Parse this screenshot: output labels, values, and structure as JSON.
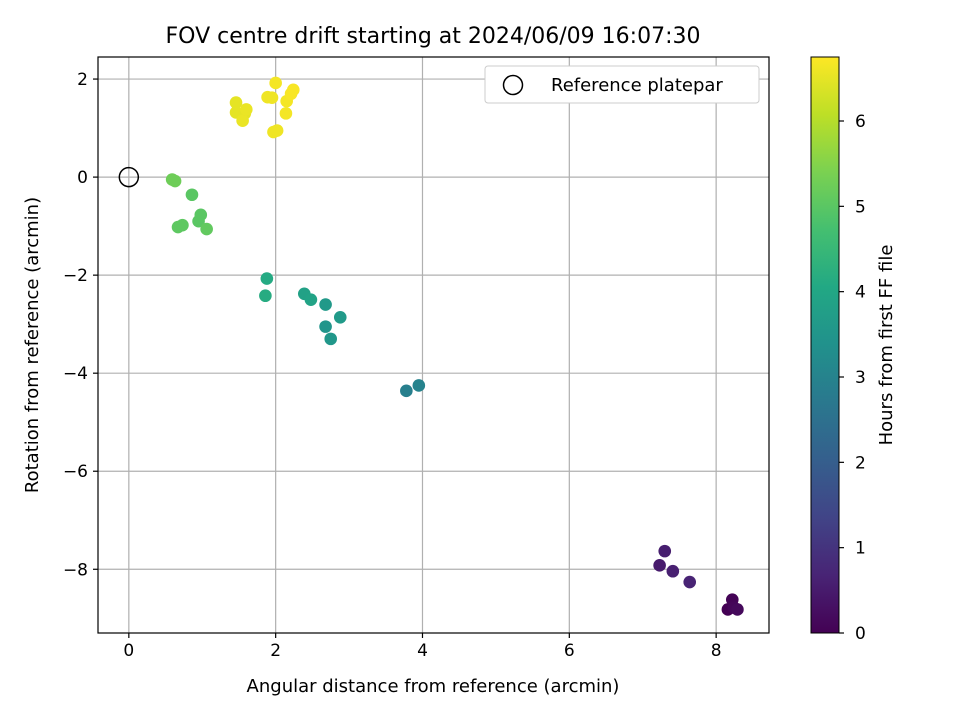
{
  "chart_data": {
    "type": "scatter",
    "title": "FOV centre drift starting at 2024/06/09 16:07:30",
    "xlabel": "Angular distance from reference (arcmin)",
    "ylabel": "Rotation from reference (arcmin)",
    "xlim": [
      -0.42,
      8.72
    ],
    "ylim": [
      -9.3,
      2.45
    ],
    "xticks": [
      0,
      2,
      4,
      6,
      8
    ],
    "yticks": [
      2,
      0,
      -2,
      -4,
      -6,
      -8
    ],
    "grid": true,
    "legend": {
      "placement": "top-right",
      "entries": [
        "Reference platepar"
      ]
    },
    "reference_point": {
      "x": 0,
      "y": 0
    },
    "colorbar": {
      "label": "Hours from first FF file",
      "range": [
        0,
        6.75
      ],
      "ticks": [
        0,
        1,
        2,
        3,
        4,
        5,
        6
      ],
      "colormap": "viridis"
    },
    "points": [
      {
        "x": 8.16,
        "y": -8.82,
        "h": 0.0
      },
      {
        "x": 8.22,
        "y": -8.62,
        "h": 0.05
      },
      {
        "x": 8.24,
        "y": -8.78,
        "h": 0.1
      },
      {
        "x": 8.29,
        "y": -8.82,
        "h": 0.15
      },
      {
        "x": 7.23,
        "y": -7.92,
        "h": 0.5
      },
      {
        "x": 7.3,
        "y": -7.63,
        "h": 0.55
      },
      {
        "x": 7.41,
        "y": -8.04,
        "h": 0.6
      },
      {
        "x": 7.64,
        "y": -8.26,
        "h": 0.65
      },
      {
        "x": 3.78,
        "y": -4.36,
        "h": 2.9
      },
      {
        "x": 3.95,
        "y": -4.25,
        "h": 3.0
      },
      {
        "x": 2.68,
        "y": -3.05,
        "h": 3.5
      },
      {
        "x": 2.75,
        "y": -3.3,
        "h": 3.55
      },
      {
        "x": 2.68,
        "y": -2.6,
        "h": 3.6
      },
      {
        "x": 2.88,
        "y": -2.86,
        "h": 3.65
      },
      {
        "x": 2.39,
        "y": -2.38,
        "h": 3.85
      },
      {
        "x": 2.48,
        "y": -2.5,
        "h": 3.9
      },
      {
        "x": 1.88,
        "y": -2.07,
        "h": 4.1
      },
      {
        "x": 1.86,
        "y": -2.42,
        "h": 4.15
      },
      {
        "x": 0.86,
        "y": -0.36,
        "h": 5.0
      },
      {
        "x": 0.98,
        "y": -0.77,
        "h": 5.0
      },
      {
        "x": 0.95,
        "y": -0.9,
        "h": 5.0
      },
      {
        "x": 0.73,
        "y": -0.98,
        "h": 5.05
      },
      {
        "x": 0.67,
        "y": -1.02,
        "h": 5.05
      },
      {
        "x": 1.06,
        "y": -1.06,
        "h": 5.1
      },
      {
        "x": 0.59,
        "y": -0.05,
        "h": 5.25
      },
      {
        "x": 0.63,
        "y": -0.08,
        "h": 5.25
      },
      {
        "x": 1.46,
        "y": 1.52,
        "h": 6.5
      },
      {
        "x": 1.46,
        "y": 1.32,
        "h": 6.5
      },
      {
        "x": 1.58,
        "y": 1.3,
        "h": 6.5
      },
      {
        "x": 1.55,
        "y": 1.15,
        "h": 6.55
      },
      {
        "x": 1.6,
        "y": 1.38,
        "h": 6.55
      },
      {
        "x": 1.89,
        "y": 1.63,
        "h": 6.6
      },
      {
        "x": 1.95,
        "y": 1.62,
        "h": 6.6
      },
      {
        "x": 2.0,
        "y": 1.92,
        "h": 6.65
      },
      {
        "x": 1.97,
        "y": 0.92,
        "h": 6.6
      },
      {
        "x": 2.02,
        "y": 0.95,
        "h": 6.6
      },
      {
        "x": 2.14,
        "y": 1.3,
        "h": 6.65
      },
      {
        "x": 2.15,
        "y": 1.55,
        "h": 6.65
      },
      {
        "x": 2.21,
        "y": 1.7,
        "h": 6.7
      },
      {
        "x": 2.24,
        "y": 1.78,
        "h": 6.7
      }
    ]
  }
}
